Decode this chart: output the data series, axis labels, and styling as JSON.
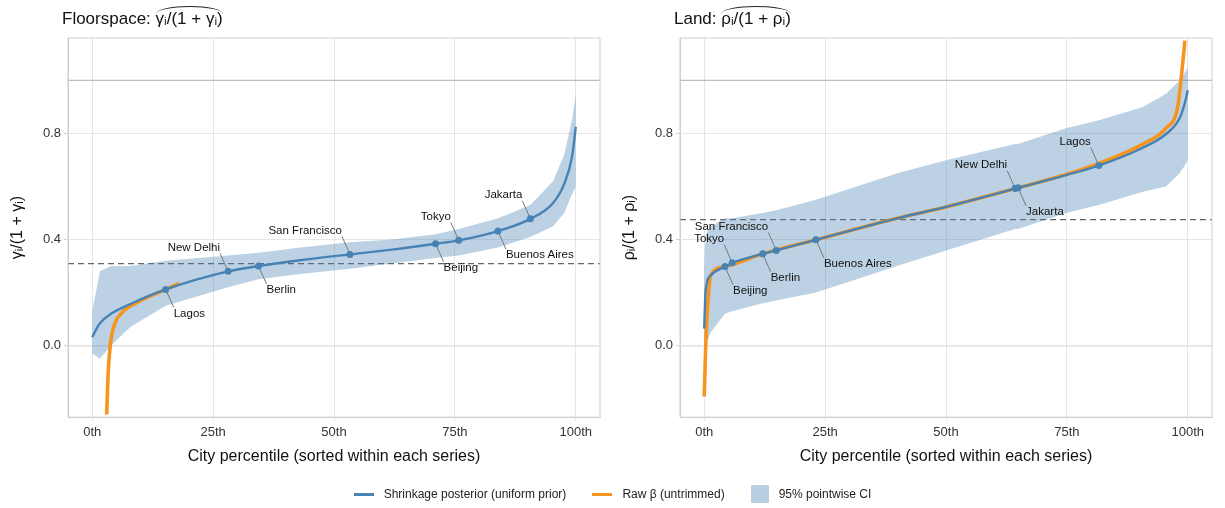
{
  "chart_data": [
    {
      "type": "line",
      "title": "Floorspace: γᵢ/(1 + γᵢ)",
      "xlabel": "City percentile (sorted within each series)",
      "ylabel": "γᵢ/(1 + γᵢ)",
      "xlim": [
        -5,
        105
      ],
      "xticks": [
        {
          "value": 0,
          "label": "0th"
        },
        {
          "value": 25,
          "label": "25th"
        },
        {
          "value": 50,
          "label": "50th"
        },
        {
          "value": 75,
          "label": "75th"
        },
        {
          "value": 100,
          "label": "100th"
        }
      ],
      "ylim": [
        -0.27,
        1.16
      ],
      "yticks": [
        {
          "value": 0,
          "label": "0.0"
        },
        {
          "value": 0.4,
          "label": "0.4"
        },
        {
          "value": 0.8,
          "label": "0.8"
        }
      ],
      "grid": true,
      "legend": "bottom",
      "series": [
        {
          "name": "Raw β (untrimmed)",
          "color": "#f7941d",
          "x": [
            3.0,
            3.3,
            3.8,
            4.7,
            6.3,
            9.4,
            15.2,
            18
          ],
          "values": [
            -0.26,
            -0.107,
            0.01,
            0.084,
            0.127,
            0.164,
            0.212,
            0.235
          ]
        },
        {
          "name": "Shrinkage posterior (uniform prior)",
          "color": "#4682b4",
          "x": [
            0,
            1.6,
            3.9,
            7.9,
            15.2,
            28.1,
            34.4,
            43,
            53.3,
            62,
            71,
            75.8,
            83.9,
            90.6,
            95.3,
            97.6,
            99.2,
            100
          ],
          "values": [
            0.032,
            0.084,
            0.12,
            0.157,
            0.212,
            0.28,
            0.3,
            0.322,
            0.344,
            0.362,
            0.384,
            0.397,
            0.432,
            0.478,
            0.538,
            0.61,
            0.71,
            0.825
          ],
          "lower": [
            -0.03,
            -0.05,
            0.0,
            0.07,
            0.15,
            0.22,
            0.25,
            0.27,
            0.29,
            0.31,
            0.33,
            0.34,
            0.37,
            0.41,
            0.45,
            0.5,
            0.57,
            0.6
          ],
          "upper": [
            0.13,
            0.28,
            0.3,
            0.3,
            0.32,
            0.34,
            0.35,
            0.37,
            0.39,
            0.4,
            0.42,
            0.44,
            0.48,
            0.53,
            0.62,
            0.72,
            0.85,
            0.95
          ]
        }
      ],
      "ref_lines": [
        {
          "axis": "y",
          "value": 0,
          "color": "#bdbdbd",
          "line_style": "solid"
        },
        {
          "axis": "y",
          "value": 1,
          "color": "#bdbdbd",
          "line_style": "solid"
        },
        {
          "axis": "y",
          "value": 0.309,
          "color": "#666666",
          "line_style": "dashed"
        }
      ],
      "annotations": [
        "95% pointwise CI",
        {
          "text": "Lagos",
          "x": 15.2,
          "y": 0.212
        },
        {
          "text": "New Delhi",
          "x": 28.1,
          "y": 0.28
        },
        {
          "text": "Berlin",
          "x": 34.4,
          "y": 0.3
        },
        {
          "text": "San Francisco",
          "x": 53.3,
          "y": 0.344
        },
        {
          "text": "Beijing",
          "x": 71,
          "y": 0.384
        },
        {
          "text": "Tokyo",
          "x": 75.8,
          "y": 0.397
        },
        {
          "text": "Buenos Aires",
          "x": 83.9,
          "y": 0.432
        },
        {
          "text": "Jakarta",
          "x": 90.6,
          "y": 0.478
        }
      ]
    },
    {
      "type": "line",
      "title": "Land: ρᵢ/(1 + ρᵢ)",
      "xlabel": "City percentile (sorted within each series)",
      "ylabel": "ρᵢ/(1 + ρᵢ)",
      "xlim": [
        -5,
        105
      ],
      "xticks": [
        {
          "value": 0,
          "label": "0th"
        },
        {
          "value": 25,
          "label": "25th"
        },
        {
          "value": 50,
          "label": "50th"
        },
        {
          "value": 75,
          "label": "75th"
        },
        {
          "value": 100,
          "label": "100th"
        }
      ],
      "ylim": [
        -0.27,
        1.16
      ],
      "yticks": [
        {
          "value": 0,
          "label": "0.0"
        },
        {
          "value": 0.4,
          "label": "0.4"
        },
        {
          "value": 0.8,
          "label": "0.8"
        }
      ],
      "grid": true,
      "series": [
        {
          "color": "#f7941d",
          "x": [
            0,
            0.2,
            0.4,
            0.95,
            1.35,
            4.3,
            12.1,
            23.1,
            39.9,
            50.2,
            64.3,
            74.8,
            81.6,
            90.7,
            95.5,
            97.9,
            98.7,
            99.4
          ],
          "values": [
            -0.192,
            -0.074,
            0.044,
            0.207,
            0.265,
            0.298,
            0.346,
            0.399,
            0.48,
            0.524,
            0.592,
            0.645,
            0.687,
            0.76,
            0.82,
            0.9,
            1.02,
            1.15
          ]
        },
        {
          "color": "#4682b4",
          "x": [
            0,
            0.3,
            1.35,
            4.3,
            5.8,
            12.1,
            14.9,
            23.1,
            39.9,
            50.2,
            64.3,
            64.9,
            74.8,
            81.6,
            90.7,
            95.5,
            98.3,
            99.4,
            100
          ],
          "values": [
            0.064,
            0.207,
            0.265,
            0.298,
            0.312,
            0.346,
            0.359,
            0.399,
            0.48,
            0.524,
            0.592,
            0.595,
            0.643,
            0.679,
            0.746,
            0.798,
            0.857,
            0.916,
            0.963
          ],
          "lower": [
            -0.1,
            0.0,
            0.05,
            0.12,
            0.13,
            0.16,
            0.17,
            0.2,
            0.3,
            0.36,
            0.44,
            0.44,
            0.5,
            0.53,
            0.58,
            0.6,
            0.65,
            0.68,
            0.7
          ],
          "upper": [
            0.3,
            0.42,
            0.45,
            0.48,
            0.48,
            0.5,
            0.51,
            0.55,
            0.65,
            0.7,
            0.76,
            0.76,
            0.82,
            0.85,
            0.9,
            0.95,
            1.0,
            1.03,
            1.05
          ]
        }
      ],
      "ref_lines": [
        {
          "axis": "y",
          "value": 0,
          "color": "#bdbdbd",
          "line_style": "solid"
        },
        {
          "axis": "y",
          "value": 1,
          "color": "#bdbdbd",
          "line_style": "solid"
        },
        {
          "axis": "y",
          "value": 0.475,
          "color": "#666666",
          "line_style": "dashed"
        }
      ],
      "annotations": [
        {
          "text": "Beijing",
          "x": 4.3,
          "y": 0.298
        },
        {
          "text": "Tokyo",
          "x": 5.8,
          "y": 0.312
        },
        {
          "text": "Berlin",
          "x": 12.1,
          "y": 0.346
        },
        {
          "text": "San Francisco",
          "x": 14.9,
          "y": 0.359
        },
        {
          "text": "Buenos Aires",
          "x": 23.1,
          "y": 0.399
        },
        {
          "text": "New Delhi",
          "x": 64.3,
          "y": 0.592
        },
        {
          "text": "Jakarta",
          "x": 64.9,
          "y": 0.595
        },
        {
          "text": "Lagos",
          "x": 81.6,
          "y": 0.679
        }
      ]
    }
  ]
}
